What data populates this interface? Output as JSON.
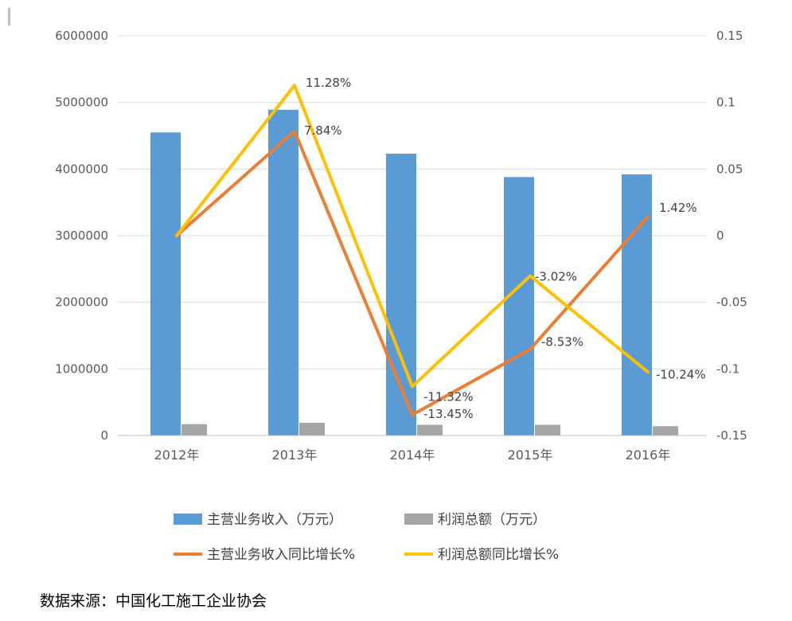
{
  "chart_data": {
    "type": "bar",
    "categories": [
      "2012年",
      "2013年",
      "2014年",
      "2015年",
      "2016年"
    ],
    "series": [
      {
        "name": "主营业务收入（万元）",
        "type": "bar",
        "axis": "left",
        "values": [
          4550000,
          4890000,
          4230000,
          3880000,
          3920000
        ],
        "color": "#5B9BD5"
      },
      {
        "name": "利润总额（万元）",
        "type": "bar",
        "axis": "left",
        "values": [
          170000,
          190000,
          160000,
          160000,
          140000
        ],
        "color": "#A5A5A5"
      },
      {
        "name": "主营业务收入同比增长%",
        "type": "line",
        "axis": "right",
        "values": [
          0,
          0.0784,
          -0.1345,
          -0.0853,
          0.0142
        ],
        "labels": [
          "",
          "7.84%",
          "-13.45%",
          "-8.53%",
          "1.42%"
        ],
        "color": "#ED7D31"
      },
      {
        "name": "利润总额同比增长%",
        "type": "line",
        "axis": "right",
        "values": [
          0,
          0.1128,
          -0.1132,
          -0.0302,
          -0.1024
        ],
        "labels": [
          "",
          "11.28%",
          "-11.32%",
          "-3.02%",
          "-10.24%"
        ],
        "color": "#FFC000"
      }
    ],
    "yleft": {
      "ylim": [
        0,
        6000000
      ],
      "ticks": [
        "0",
        "1000000",
        "2000000",
        "3000000",
        "4000000",
        "5000000",
        "6000000"
      ]
    },
    "yright": {
      "ylim": [
        -0.15,
        0.15
      ],
      "ticks": [
        "-0.15",
        "-0.1",
        "-0.05",
        "0",
        "0.05",
        "0.1",
        "0.15"
      ]
    },
    "grid": true,
    "legend": "bottom"
  },
  "source_note": "数据来源：中国化工施工企业协会"
}
